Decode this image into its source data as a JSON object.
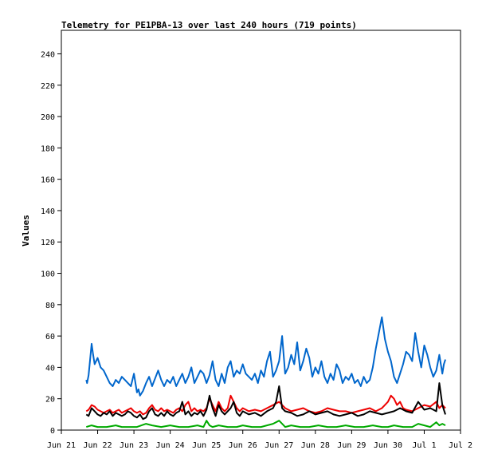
{
  "chart_data": {
    "type": "line",
    "title": "Telemetry for PE1PBA-13 over last 240 hours (719 points)",
    "ylabel": "Values",
    "xlabel": "",
    "ylim": [
      0,
      255
    ],
    "xlim": [
      0,
      264
    ],
    "y_ticks": [
      0,
      20,
      40,
      60,
      80,
      100,
      120,
      140,
      160,
      180,
      200,
      220,
      240
    ],
    "x_ticks": [
      {
        "label": "Jun 21",
        "x": 0
      },
      {
        "label": "Jun 22",
        "x": 24
      },
      {
        "label": "Jun 23",
        "x": 48
      },
      {
        "label": "Jun 24",
        "x": 72
      },
      {
        "label": "Jun 25",
        "x": 96
      },
      {
        "label": "Jun 26",
        "x": 120
      },
      {
        "label": "Jun 27",
        "x": 144
      },
      {
        "label": "Jun 28",
        "x": 168
      },
      {
        "label": "Jun 29",
        "x": 192
      },
      {
        "label": "Jun 30",
        "x": 216
      },
      {
        "label": "Jul 1",
        "x": 240
      },
      {
        "label": "Jul 2",
        "x": 264
      }
    ],
    "grid": false,
    "series": [
      {
        "color": "#0066cc",
        "x": [
          16.5,
          17,
          18,
          19,
          20,
          21,
          22,
          24,
          26,
          28,
          30,
          32,
          34,
          36,
          38,
          40,
          42,
          44,
          46,
          48,
          49,
          50,
          51,
          52,
          54,
          56,
          58,
          60,
          62,
          64,
          66,
          68,
          70,
          72,
          74,
          76,
          78,
          80,
          82,
          84,
          86,
          88,
          90,
          92,
          94,
          96,
          98,
          100,
          102,
          104,
          106,
          108,
          110,
          112,
          114,
          116,
          118,
          120,
          122,
          124,
          126,
          128,
          130,
          132,
          134,
          136,
          138,
          140,
          142,
          144,
          146,
          148,
          150,
          152,
          154,
          156,
          158,
          160,
          162,
          164,
          166,
          168,
          170,
          172,
          174,
          176,
          178,
          180,
          182,
          184,
          186,
          188,
          190,
          192,
          194,
          196,
          198,
          200,
          202,
          204,
          206,
          208,
          210,
          212,
          214,
          216,
          218,
          220,
          222,
          224,
          226,
          228,
          230,
          232,
          234,
          236,
          238,
          240,
          242,
          244,
          246,
          248,
          250,
          252,
          253,
          254
        ],
        "y": [
          32,
          30,
          35,
          45,
          55,
          48,
          42,
          46,
          40,
          38,
          34,
          30,
          28,
          32,
          30,
          34,
          32,
          30,
          28,
          36,
          30,
          24,
          26,
          22,
          25,
          30,
          34,
          28,
          33,
          38,
          32,
          28,
          32,
          30,
          34,
          28,
          32,
          36,
          30,
          34,
          40,
          30,
          34,
          38,
          36,
          30,
          35,
          44,
          32,
          28,
          36,
          30,
          40,
          44,
          34,
          38,
          36,
          42,
          36,
          34,
          32,
          36,
          30,
          38,
          34,
          44,
          50,
          34,
          38,
          44,
          60,
          36,
          40,
          48,
          42,
          56,
          38,
          44,
          52,
          46,
          34,
          40,
          36,
          44,
          34,
          30,
          36,
          32,
          42,
          38,
          30,
          34,
          32,
          36,
          30,
          32,
          28,
          34,
          30,
          32,
          40,
          52,
          62,
          72,
          58,
          50,
          44,
          34,
          30,
          36,
          42,
          50,
          48,
          44,
          62,
          50,
          40,
          54,
          48,
          40,
          34,
          38,
          48,
          36,
          42,
          45
        ]
      },
      {
        "color": "#ee0000",
        "x": [
          16.5,
          18,
          20,
          22,
          24,
          26,
          28,
          30,
          32,
          34,
          36,
          38,
          40,
          42,
          44,
          46,
          48,
          50,
          52,
          54,
          56,
          58,
          60,
          62,
          64,
          66,
          68,
          70,
          72,
          74,
          76,
          78,
          80,
          82,
          84,
          86,
          88,
          90,
          92,
          94,
          96,
          98,
          100,
          102,
          104,
          106,
          108,
          110,
          112,
          114,
          116,
          118,
          120,
          124,
          128,
          132,
          136,
          140,
          144,
          148,
          152,
          156,
          160,
          164,
          168,
          172,
          176,
          180,
          184,
          188,
          192,
          196,
          200,
          204,
          208,
          212,
          214,
          216,
          218,
          220,
          222,
          224,
          226,
          228,
          232,
          236,
          240,
          244,
          248,
          250,
          252,
          254
        ],
        "y": [
          12,
          13,
          16,
          15,
          13,
          12,
          11,
          12,
          13,
          11,
          12,
          13,
          11,
          12,
          13,
          14,
          12,
          11,
          12,
          10,
          11,
          14,
          16,
          13,
          12,
          14,
          12,
          13,
          12,
          11,
          13,
          14,
          12,
          16,
          18,
          12,
          14,
          12,
          13,
          12,
          14,
          20,
          16,
          12,
          18,
          14,
          12,
          14,
          22,
          18,
          14,
          12,
          14,
          12,
          13,
          12,
          14,
          16,
          18,
          14,
          12,
          13,
          14,
          12,
          11,
          12,
          14,
          13,
          12,
          12,
          11,
          12,
          13,
          14,
          12,
          14,
          16,
          18,
          22,
          20,
          16,
          18,
          14,
          13,
          12,
          14,
          16,
          15,
          18,
          14,
          16,
          14
        ]
      },
      {
        "color": "#000000",
        "x": [
          16.5,
          18,
          20,
          22,
          24,
          26,
          28,
          30,
          32,
          34,
          36,
          38,
          40,
          42,
          44,
          46,
          48,
          50,
          52,
          54,
          56,
          58,
          60,
          62,
          64,
          66,
          68,
          70,
          72,
          74,
          76,
          78,
          80,
          82,
          84,
          86,
          88,
          90,
          92,
          94,
          96,
          98,
          100,
          102,
          104,
          106,
          108,
          110,
          112,
          114,
          116,
          118,
          120,
          124,
          128,
          132,
          136,
          140,
          142,
          144,
          146,
          148,
          152,
          156,
          160,
          164,
          168,
          172,
          176,
          180,
          184,
          188,
          192,
          196,
          200,
          204,
          208,
          212,
          216,
          220,
          224,
          228,
          232,
          236,
          240,
          244,
          248,
          250,
          252,
          254
        ],
        "y": [
          10,
          9,
          14,
          12,
          10,
          9,
          11,
          10,
          12,
          9,
          11,
          10,
          9,
          10,
          12,
          11,
          9,
          8,
          10,
          7,
          8,
          12,
          14,
          10,
          9,
          11,
          9,
          12,
          10,
          9,
          11,
          12,
          18,
          10,
          12,
          9,
          11,
          10,
          12,
          9,
          13,
          22,
          14,
          9,
          16,
          12,
          10,
          12,
          14,
          18,
          11,
          9,
          12,
          10,
          11,
          9,
          12,
          14,
          18,
          28,
          14,
          12,
          11,
          9,
          10,
          12,
          10,
          11,
          12,
          10,
          9,
          10,
          11,
          9,
          10,
          12,
          11,
          10,
          11,
          12,
          14,
          12,
          11,
          18,
          13,
          14,
          12,
          30,
          16,
          10
        ]
      },
      {
        "color": "#00aa00",
        "x": [
          16.5,
          20,
          24,
          30,
          36,
          40,
          46,
          50,
          56,
          60,
          66,
          72,
          78,
          84,
          90,
          94,
          96,
          98,
          100,
          104,
          110,
          116,
          120,
          126,
          132,
          136,
          140,
          144,
          146,
          148,
          152,
          158,
          164,
          170,
          176,
          182,
          188,
          194,
          200,
          206,
          212,
          216,
          220,
          226,
          232,
          236,
          240,
          244,
          248,
          250,
          252,
          254
        ],
        "y": [
          2,
          3,
          2,
          2,
          3,
          2,
          2,
          2,
          4,
          3,
          2,
          3,
          2,
          2,
          3,
          2,
          6,
          3,
          2,
          3,
          2,
          2,
          3,
          2,
          2,
          3,
          4,
          6,
          4,
          2,
          3,
          2,
          2,
          3,
          2,
          2,
          3,
          2,
          2,
          3,
          2,
          2,
          3,
          2,
          2,
          4,
          3,
          2,
          5,
          3,
          4,
          3
        ]
      }
    ]
  }
}
